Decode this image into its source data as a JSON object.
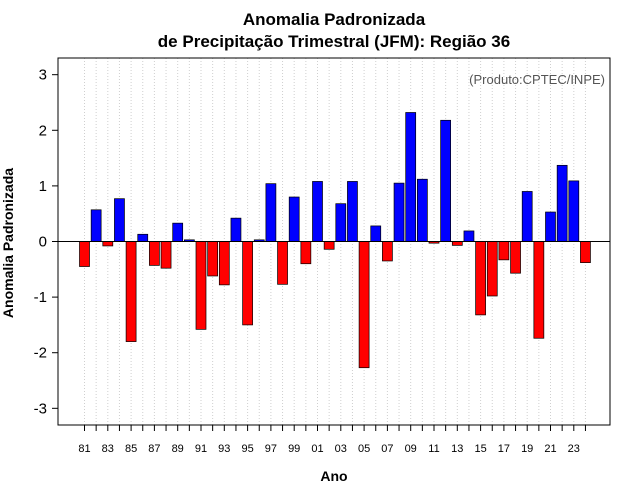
{
  "chart_data": {
    "type": "bar",
    "title": [
      "Anomalia Padronizada",
      "de Precipitação Trimestral (JFM): Região 36"
    ],
    "credit": "(Produto:CPTEC/INPE)",
    "xlabel": "Ano",
    "ylabel": "Anomalia Padronizada",
    "ylim": [
      -3.3,
      3.3
    ],
    "yticks": [
      -3,
      -2,
      -1,
      0,
      1,
      2,
      3
    ],
    "grid": "vertical-dotted",
    "positive_color": "#0000ff",
    "negative_color": "#ff0000",
    "categories": [
      "1981",
      "1982",
      "1983",
      "1984",
      "1985",
      "1986",
      "1987",
      "1988",
      "1989",
      "1990",
      "1991",
      "1992",
      "1993",
      "1994",
      "1995",
      "1996",
      "1997",
      "1998",
      "1999",
      "2000",
      "2001",
      "2002",
      "2003",
      "2004",
      "2005",
      "2006",
      "2007",
      "2008",
      "2009",
      "2010",
      "2011",
      "2012",
      "2013",
      "2014",
      "2015",
      "2016",
      "2017",
      "2018",
      "2019",
      "2020",
      "2021",
      "2022",
      "2023",
      "2024"
    ],
    "xtick_labels": [
      "81",
      "",
      "83",
      "",
      "85",
      "",
      "87",
      "",
      "89",
      "",
      "91",
      "",
      "93",
      "",
      "95",
      "",
      "97",
      "",
      "99",
      "",
      "01",
      "",
      "03",
      "",
      "05",
      "",
      "07",
      "",
      "09",
      "",
      "11",
      "",
      "13",
      "",
      "15",
      "",
      "17",
      "",
      "19",
      "",
      "21",
      "",
      "23",
      ""
    ],
    "values": [
      -0.45,
      0.57,
      -0.08,
      0.77,
      -1.8,
      0.13,
      -0.43,
      -0.48,
      0.33,
      0.03,
      -1.58,
      -0.62,
      -0.78,
      0.42,
      -1.5,
      0.03,
      1.04,
      -0.77,
      0.8,
      -0.4,
      1.08,
      -0.14,
      0.68,
      1.08,
      -2.27,
      0.28,
      -0.35,
      1.05,
      2.32,
      1.12,
      -0.03,
      2.18,
      -0.07,
      0.19,
      -1.32,
      -0.98,
      -0.33,
      -0.57,
      0.9,
      -1.74,
      0.53,
      1.37,
      1.09,
      -0.38
    ]
  }
}
